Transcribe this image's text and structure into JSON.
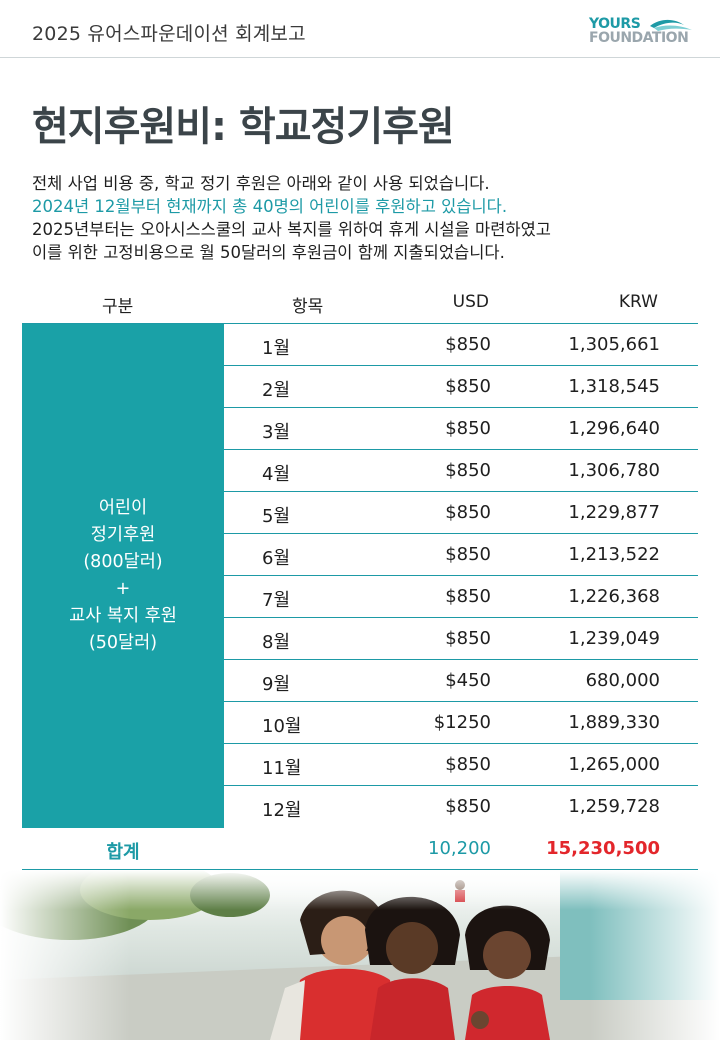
{
  "header": {
    "title": "2025 유어스파운데이션 회계보고",
    "logo_line1": "YOURS",
    "logo_line2": "FOUNDATION"
  },
  "page_title": "현지후원비: 학교정기후원",
  "intro": {
    "line1": "전체 사업 비용 중, 학교 정기 후원은 아래와 같이 사용 되었습니다.",
    "line2": "2024년 12월부터 현재까지 총 40명의 어린이를 후원하고 있습니다.",
    "line3": "2025년부터는 오아시스스쿨의 교사 복지를 위하여 휴게 시설을 마련하였고",
    "line4": "이를 위한 고정비용으로 월 50달러의 후원금이 함께 지출되었습니다."
  },
  "table": {
    "headers": {
      "category": "구분",
      "item": "항목",
      "usd": "USD",
      "krw": "KRW"
    },
    "category_lines": [
      "어린이",
      "정기후원",
      "(800달러)",
      "+",
      "교사 복지 후원",
      "(50달러)"
    ],
    "rows": [
      {
        "month": "1월",
        "usd": "$850",
        "krw": "1,305,661"
      },
      {
        "month": "2월",
        "usd": "$850",
        "krw": "1,318,545"
      },
      {
        "month": "3월",
        "usd": "$850",
        "krw": "1,296,640"
      },
      {
        "month": "4월",
        "usd": "$850",
        "krw": "1,306,780"
      },
      {
        "month": "5월",
        "usd": "$850",
        "krw": "1,229,877"
      },
      {
        "month": "6월",
        "usd": "$850",
        "krw": "1,213,522"
      },
      {
        "month": "7월",
        "usd": "$850",
        "krw": "1,226,368"
      },
      {
        "month": "8월",
        "usd": "$850",
        "krw": "1,239,049"
      },
      {
        "month": "9월",
        "usd": "$450",
        "krw": "680,000"
      },
      {
        "month": "10월",
        "usd": "$1250",
        "krw": "1,889,330"
      },
      {
        "month": "11월",
        "usd": "$850",
        "krw": "1,265,000"
      },
      {
        "month": "12월",
        "usd": "$850",
        "krw": "1,259,728"
      }
    ],
    "total": {
      "label": "합계",
      "usd": "10,200",
      "krw": "15,230,500"
    }
  },
  "colors": {
    "accent": "#1aa1a7",
    "total_krw": "#e3262b",
    "title": "#3b4449"
  }
}
